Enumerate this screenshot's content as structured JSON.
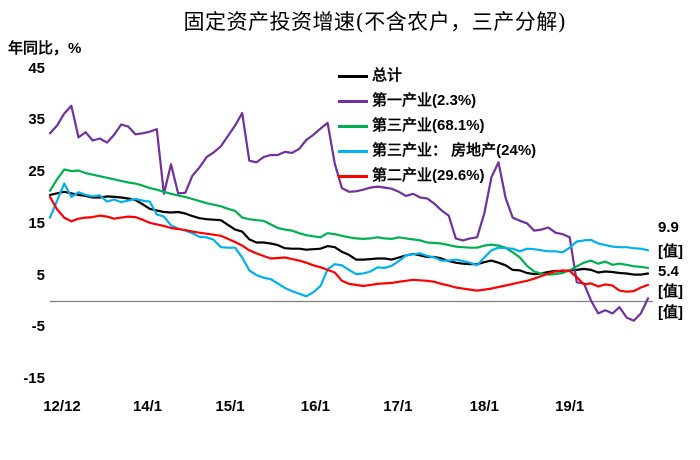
{
  "title": "固定资产投资增速(不含农户，三产分解)",
  "y_axis": {
    "title": "年同比，%",
    "tick_values": [
      45,
      35,
      25,
      15,
      5,
      -5,
      -15
    ]
  },
  "x_axis": {
    "ticks": [
      {
        "label": "12/12",
        "month_index": 0
      },
      {
        "label": "14/1",
        "month_index": 13
      },
      {
        "label": "15/1",
        "month_index": 25
      },
      {
        "label": "16/1",
        "month_index": 37
      },
      {
        "label": "17/1",
        "month_index": 49
      },
      {
        "label": "18/1",
        "month_index": 61
      },
      {
        "label": "19/1",
        "month_index": 73
      }
    ]
  },
  "legend": [
    {
      "label": "总计",
      "color": "#000000"
    },
    {
      "label": "第一产业(2.3%)",
      "color": "#7030A0"
    },
    {
      "label": "第三产业(68.1%)",
      "color": "#00B050"
    },
    {
      "label": "第三产业： 房地产(24%)",
      "color": "#00B0F0"
    },
    {
      "label": "第二产业(29.6%)",
      "color": "#FF0000"
    }
  ],
  "end_labels": [
    {
      "text": "9.9",
      "series": "第三产业： 房地产(24%)"
    },
    {
      "text": "[值]",
      "series": "第三产业(68.1%)"
    },
    {
      "text": "5.4",
      "series": "总计"
    },
    {
      "text": "[值]",
      "series": "第二产业(29.6%)"
    },
    {
      "text": "[值]",
      "series": "第一产业(2.3%)"
    }
  ],
  "zero_line_color": "#808080",
  "chart_data": {
    "type": "line",
    "title": "固定资产投资增速(不含农户，三产分解)",
    "ylabel": "年同比，%",
    "ylim": [
      -15,
      45
    ],
    "grid": false,
    "zero_line": true,
    "legend_position": "upper-center-inside",
    "x_unit": "month",
    "x_start": "2012/12",
    "x_end": "2019/12",
    "x_tick_labels": [
      "12/12",
      "14/1",
      "15/1",
      "16/1",
      "17/1",
      "18/1",
      "19/1"
    ],
    "series": [
      {
        "name": "总计",
        "color": "#000000",
        "values": [
          20.6,
          20.9,
          21.2,
          20.9,
          20.6,
          20.4,
          20.1,
          20.1,
          20.3,
          20.2,
          20.1,
          19.9,
          19.6,
          18.8,
          17.9,
          17.6,
          17.3,
          17.2,
          17.3,
          17.0,
          16.5,
          16.1,
          15.9,
          15.8,
          15.7,
          14.8,
          13.9,
          13.5,
          12.0,
          11.4,
          11.4,
          11.2,
          10.9,
          10.3,
          10.2,
          10.2,
          10.0,
          10.1,
          10.2,
          10.7,
          10.5,
          9.6,
          9.0,
          8.1,
          8.1,
          8.2,
          8.3,
          8.3,
          8.1,
          8.5,
          8.9,
          9.2,
          8.9,
          8.6,
          8.6,
          8.3,
          7.8,
          7.5,
          7.3,
          7.2,
          7.2,
          7.6,
          7.9,
          7.5,
          7.0,
          6.1,
          6.0,
          5.5,
          5.3,
          5.4,
          5.7,
          5.9,
          5.9,
          6.0,
          6.1,
          6.3,
          6.1,
          5.6,
          5.8,
          5.7,
          5.5,
          5.4,
          5.2,
          5.2,
          5.4
        ]
      },
      {
        "name": "第一产业(2.3%)",
        "color": "#7030A0",
        "values": [
          32.5,
          34.0,
          36.3,
          37.8,
          31.7,
          32.7,
          31.1,
          31.5,
          30.7,
          32.2,
          34.2,
          33.8,
          32.3,
          32.5,
          32.8,
          33.3,
          20.8,
          26.5,
          20.9,
          21.0,
          24.3,
          25.9,
          27.9,
          28.8,
          30.0,
          32.0,
          34.0,
          36.4,
          27.2,
          26.9,
          27.9,
          28.3,
          28.3,
          28.9,
          28.7,
          29.5,
          31.2,
          32.2,
          33.4,
          34.5,
          26.6,
          21.9,
          21.2,
          21.3,
          21.6,
          22.0,
          22.2,
          22.0,
          21.8,
          21.2,
          20.4,
          20.8,
          20.1,
          19.9,
          18.9,
          17.6,
          16.6,
          12.2,
          11.8,
          12.2,
          12.4,
          17.0,
          24.0,
          26.9,
          20.0,
          16.2,
          15.6,
          15.1,
          13.7,
          13.9,
          14.3,
          13.3,
          13.0,
          12.4,
          3.7,
          3.5,
          0.2,
          -2.3,
          -1.7,
          -2.3,
          -1.1,
          -3.1,
          -3.7,
          -2.3,
          0.6
        ]
      },
      {
        "name": "第三产业(68.1%)",
        "color": "#00B050",
        "values": [
          21.4,
          23.6,
          25.5,
          25.2,
          25.3,
          24.8,
          24.5,
          24.2,
          23.9,
          23.6,
          23.3,
          23.0,
          22.8,
          22.4,
          21.9,
          21.6,
          21.2,
          20.8,
          20.5,
          20.2,
          19.8,
          19.4,
          19.0,
          18.7,
          18.4,
          17.9,
          17.5,
          16.2,
          15.9,
          15.7,
          15.6,
          14.9,
          14.2,
          13.9,
          13.7,
          13.2,
          12.8,
          12.6,
          12.4,
          13.2,
          13.0,
          12.7,
          12.4,
          12.2,
          12.1,
          12.2,
          12.4,
          12.2,
          12.1,
          12.4,
          12.2,
          12.0,
          11.8,
          11.4,
          11.3,
          11.2,
          10.9,
          10.6,
          10.5,
          10.4,
          10.4,
          10.8,
          11.0,
          10.8,
          10.4,
          9.5,
          8.5,
          6.9,
          5.8,
          5.4,
          5.2,
          5.3,
          5.5,
          6.0,
          6.8,
          7.5,
          7.9,
          7.3,
          7.7,
          7.1,
          7.3,
          7.1,
          6.8,
          6.7,
          6.5
        ]
      },
      {
        "name": "第三产业： 房地产(24%)",
        "color": "#00B0F0",
        "values": [
          16.2,
          19.5,
          22.8,
          20.2,
          21.1,
          20.6,
          20.3,
          20.5,
          19.3,
          19.7,
          19.2,
          19.5,
          19.8,
          19.5,
          19.3,
          16.8,
          16.4,
          14.7,
          14.1,
          13.7,
          13.2,
          12.5,
          12.4,
          11.9,
          10.5,
          10.4,
          10.4,
          8.5,
          6.0,
          5.1,
          4.6,
          4.3,
          3.5,
          2.6,
          2.0,
          1.5,
          1.0,
          1.8,
          3.0,
          6.2,
          7.2,
          7.0,
          6.1,
          5.3,
          5.4,
          5.8,
          6.6,
          6.5,
          6.9,
          7.8,
          8.9,
          9.1,
          9.3,
          8.8,
          8.5,
          7.9,
          7.9,
          8.1,
          7.8,
          7.5,
          7.0,
          8.5,
          9.9,
          10.4,
          10.3,
          10.2,
          9.7,
          10.2,
          10.1,
          9.9,
          9.7,
          9.7,
          9.5,
          10.4,
          11.6,
          11.8,
          11.9,
          11.2,
          10.9,
          10.6,
          10.5,
          10.5,
          10.3,
          10.2,
          9.9
        ]
      },
      {
        "name": "第二产业(29.6%)",
        "color": "#FF0000",
        "values": [
          20.2,
          17.8,
          16.2,
          15.5,
          16.0,
          16.2,
          16.3,
          16.6,
          16.4,
          16.0,
          16.2,
          16.4,
          16.3,
          15.8,
          15.2,
          14.9,
          14.6,
          14.2,
          14.0,
          13.8,
          13.5,
          13.3,
          13.1,
          12.9,
          12.7,
          12.1,
          11.5,
          10.8,
          9.9,
          9.3,
          8.8,
          8.3,
          8.4,
          8.5,
          8.2,
          7.9,
          7.5,
          7.0,
          6.6,
          6.1,
          5.6,
          4.0,
          3.4,
          3.2,
          3.0,
          3.2,
          3.4,
          3.5,
          3.6,
          3.8,
          4.0,
          4.2,
          4.1,
          4.0,
          3.8,
          3.4,
          3.1,
          2.7,
          2.5,
          2.3,
          2.1,
          2.3,
          2.5,
          2.8,
          3.1,
          3.4,
          3.7,
          4.0,
          4.4,
          4.9,
          5.4,
          5.8,
          6.0,
          5.9,
          4.7,
          3.3,
          3.5,
          2.9,
          3.3,
          3.1,
          2.1,
          1.9,
          2.0,
          2.7,
          3.2
        ]
      }
    ]
  }
}
